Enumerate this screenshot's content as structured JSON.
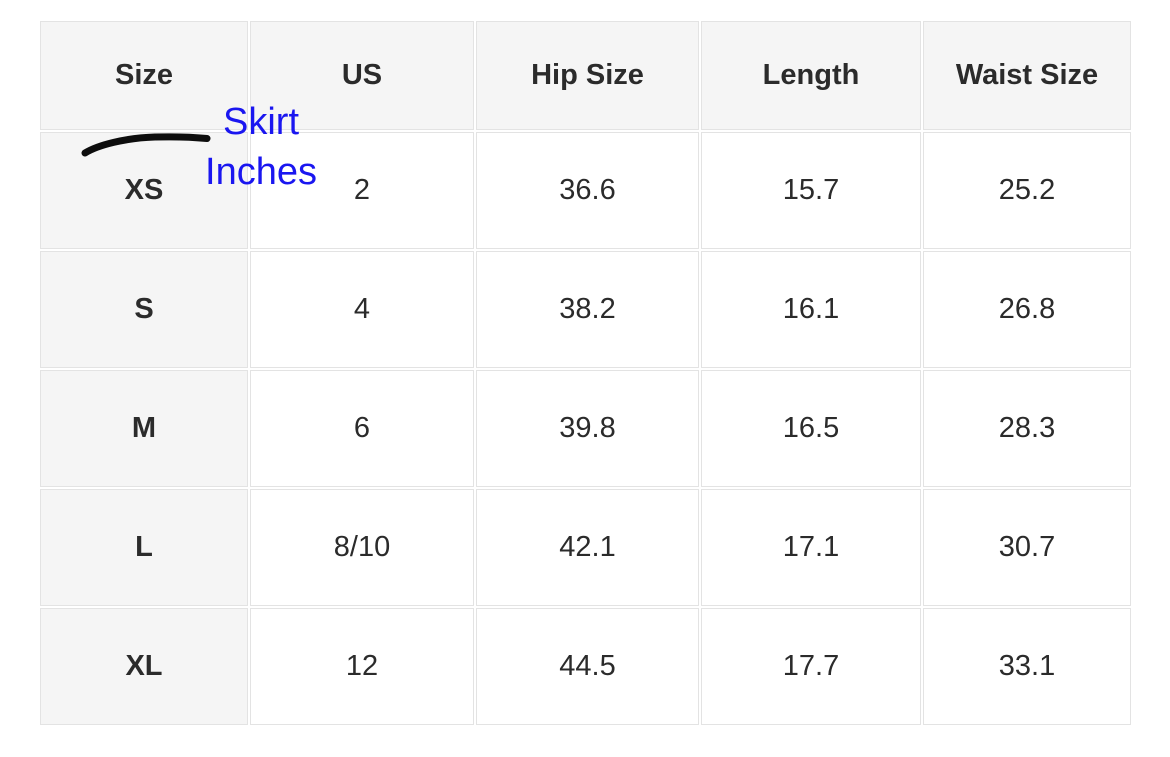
{
  "colors": {
    "header_bg": "#f5f5f5",
    "row_header_bg": "#f5f5f5",
    "cell_bg": "#ffffff",
    "border": "#e3e3e3",
    "text": "#2b2b2b",
    "annotation_text": "#1a16f0",
    "annotation_stroke": "#0d0d0d"
  },
  "table": {
    "columns": [
      "Size",
      "US",
      "Hip Size",
      "Length",
      "Waist Size"
    ],
    "rows": [
      [
        "XS",
        "2",
        "36.6",
        "15.7",
        "25.2"
      ],
      [
        "S",
        "4",
        "38.2",
        "16.1",
        "26.8"
      ],
      [
        "M",
        "6",
        "39.8",
        "16.5",
        "28.3"
      ],
      [
        "L",
        "8/10",
        "42.1",
        "17.1",
        "30.7"
      ],
      [
        "XL",
        "12",
        "44.5",
        "17.7",
        "33.1"
      ]
    ]
  },
  "annotation": {
    "line1": "Skirt",
    "line2": "Inches",
    "full_text": "Skirt Inches"
  },
  "chart_data": {
    "type": "table",
    "columns": [
      "Size",
      "US",
      "Hip Size",
      "Length",
      "Waist Size"
    ],
    "rows": [
      [
        "XS",
        "2",
        "36.6",
        "15.7",
        "25.2"
      ],
      [
        "S",
        "4",
        "38.2",
        "16.1",
        "26.8"
      ],
      [
        "M",
        "6",
        "39.8",
        "16.5",
        "28.3"
      ],
      [
        "L",
        "8/10",
        "42.1",
        "17.1",
        "30.7"
      ],
      [
        "XL",
        "12",
        "44.5",
        "17.7",
        "33.1"
      ]
    ],
    "annotation_text": "Skirt Inches",
    "notes_layout": "first column and header row shaded; hand-drawn underline beneath Size header pointing to blue annotation"
  }
}
